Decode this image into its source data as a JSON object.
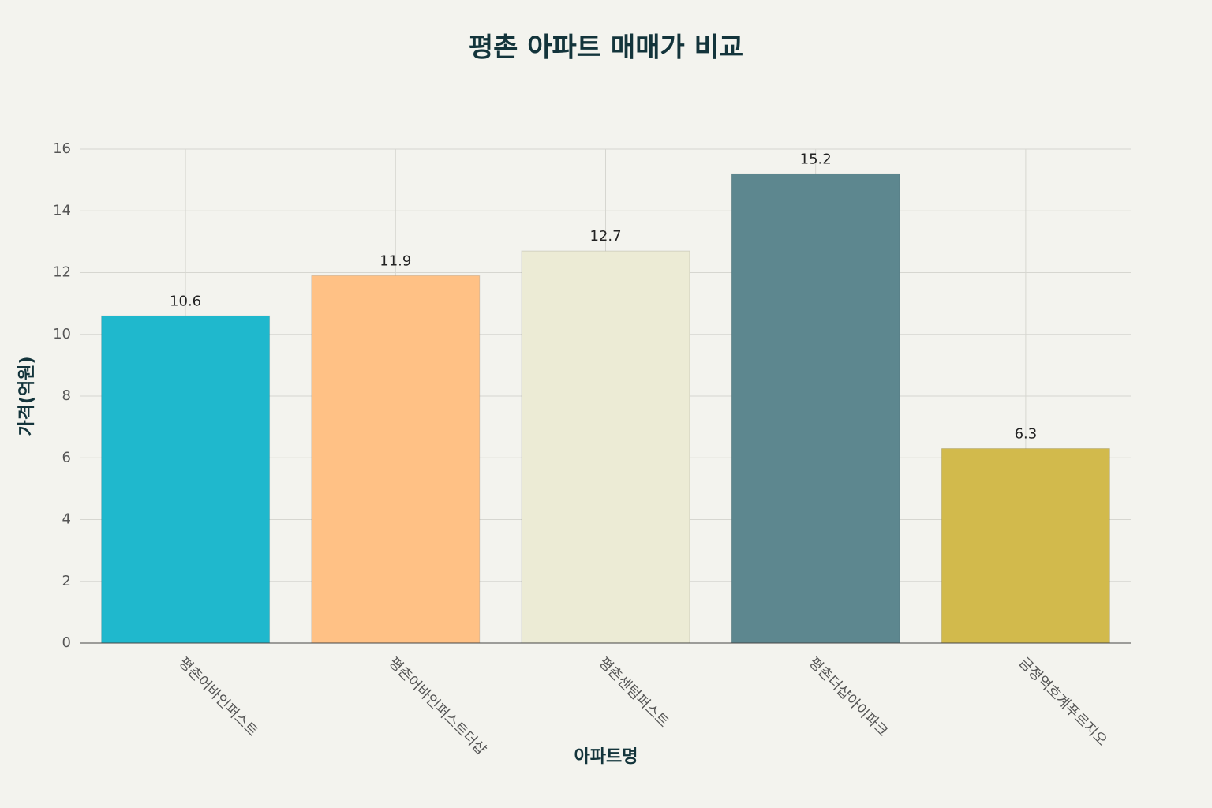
{
  "chart_data": {
    "type": "bar",
    "title": "평촌 아파트 매매가 비교",
    "x_label": "아파트명",
    "y_label": "가격(억원)",
    "categories": [
      "평촌어바인퍼스트",
      "평촌어바인퍼스트더샵",
      "평촌센텀퍼스트",
      "평촌더샵아이파크",
      "금정역호계푸르지오"
    ],
    "values": [
      10.6,
      11.9,
      12.7,
      15.2,
      6.3
    ],
    "colors": [
      "#1FB8CD",
      "#FFC185",
      "#ECEBD5",
      "#5D878F",
      "#D2BA4C"
    ],
    "ylim": [
      0,
      16
    ],
    "yticks": [
      0,
      2,
      4,
      6,
      8,
      10,
      12,
      14,
      16
    ],
    "grid": true
  }
}
